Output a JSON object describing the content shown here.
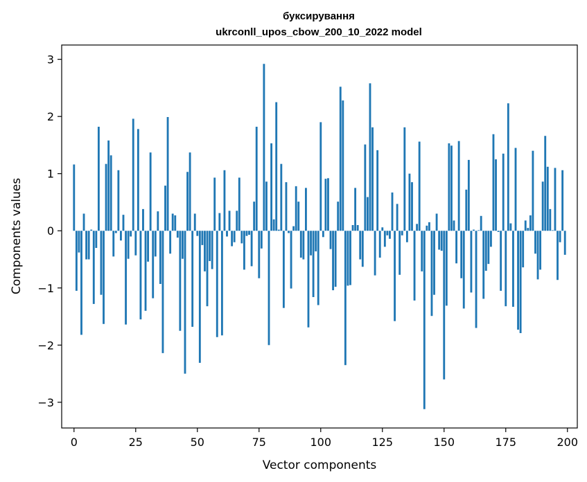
{
  "chart_data": {
    "type": "bar",
    "title": [
      "буксирування",
      "ukrconll_upos_cbow_200_10_2022 model"
    ],
    "xlabel": "Vector components",
    "ylabel": "Components values",
    "xlim": [
      -5,
      204
    ],
    "ylim": [
      -3.45,
      3.25
    ],
    "xticks": [
      0,
      25,
      50,
      75,
      100,
      125,
      150,
      175,
      200
    ],
    "xtick_labels": [
      "0",
      "25",
      "50",
      "75",
      "100",
      "125",
      "150",
      "175",
      "200"
    ],
    "yticks": [
      -3,
      -2,
      -1,
      0,
      1,
      2,
      3
    ],
    "ytick_labels": [
      "−3",
      "−2",
      "−1",
      "0",
      "1",
      "2",
      "3"
    ],
    "grid": false,
    "bar_color": "#1f77b4",
    "x": [
      0,
      1,
      2,
      3,
      4,
      5,
      6,
      7,
      8,
      9,
      10,
      11,
      12,
      13,
      14,
      15,
      16,
      17,
      18,
      19,
      20,
      21,
      22,
      23,
      24,
      25,
      26,
      27,
      28,
      29,
      30,
      31,
      32,
      33,
      34,
      35,
      36,
      37,
      38,
      39,
      40,
      41,
      42,
      43,
      44,
      45,
      46,
      47,
      48,
      49,
      50,
      51,
      52,
      53,
      54,
      55,
      56,
      57,
      58,
      59,
      60,
      61,
      62,
      63,
      64,
      65,
      66,
      67,
      68,
      69,
      70,
      71,
      72,
      73,
      74,
      75,
      76,
      77,
      78,
      79,
      80,
      81,
      82,
      83,
      84,
      85,
      86,
      87,
      88,
      89,
      90,
      91,
      92,
      93,
      94,
      95,
      96,
      97,
      98,
      99,
      100,
      101,
      102,
      103,
      104,
      105,
      106,
      107,
      108,
      109,
      110,
      111,
      112,
      113,
      114,
      115,
      116,
      117,
      118,
      119,
      120,
      121,
      122,
      123,
      124,
      125,
      126,
      127,
      128,
      129,
      130,
      131,
      132,
      133,
      134,
      135,
      136,
      137,
      138,
      139,
      140,
      141,
      142,
      143,
      144,
      145,
      146,
      147,
      148,
      149,
      150,
      151,
      152,
      153,
      154,
      155,
      156,
      157,
      158,
      159,
      160,
      161,
      162,
      163,
      164,
      165,
      166,
      167,
      168,
      169,
      170,
      171,
      172,
      173,
      174,
      175,
      176,
      177,
      178,
      179,
      180,
      181,
      182,
      183,
      184,
      185,
      186,
      187,
      188,
      189,
      190,
      191,
      192,
      193,
      194,
      195,
      196,
      197,
      198,
      199
    ],
    "values": [
      1.16,
      -1.05,
      -0.38,
      -1.82,
      0.3,
      -0.5,
      -0.5,
      0.02,
      -1.28,
      -0.3,
      1.82,
      -1.12,
      -1.63,
      1.17,
      1.58,
      1.32,
      -0.45,
      -0.04,
      1.06,
      -0.17,
      0.28,
      -1.64,
      -0.49,
      -0.1,
      1.96,
      -0.43,
      1.78,
      -1.55,
      0.38,
      -1.4,
      -0.54,
      1.37,
      -1.18,
      -0.45,
      0.34,
      -0.93,
      -2.14,
      0.79,
      1.99,
      -0.4,
      0.3,
      0.27,
      -0.12,
      -1.75,
      -0.49,
      -2.5,
      1.03,
      1.37,
      -1.68,
      0.3,
      -0.09,
      -2.31,
      -0.25,
      -0.71,
      -1.32,
      -0.53,
      -0.67,
      0.93,
      -1.86,
      0.31,
      -1.83,
      1.06,
      -0.1,
      0.35,
      -0.27,
      -0.2,
      0.35,
      0.93,
      -0.22,
      -0.68,
      -0.09,
      -0.07,
      -0.62,
      0.51,
      1.82,
      -0.83,
      -0.31,
      2.92,
      0.86,
      -2.0,
      1.53,
      0.2,
      2.25,
      0.02,
      1.17,
      -1.35,
      0.85,
      -0.04,
      -1.01,
      0.08,
      0.78,
      0.51,
      -0.47,
      -0.5,
      0.75,
      -1.69,
      -0.43,
      -1.16,
      -0.36,
      -1.3,
      1.9,
      -0.11,
      0.91,
      0.92,
      -0.32,
      -1.04,
      -0.98,
      0.51,
      2.52,
      2.28,
      -2.35,
      -0.96,
      -0.95,
      0.1,
      0.75,
      0.1,
      -0.5,
      -0.63,
      1.51,
      0.59,
      2.58,
      1.81,
      -0.78,
      1.41,
      -0.47,
      0.06,
      -0.28,
      -0.08,
      -0.14,
      0.67,
      -1.58,
      0.47,
      -0.77,
      -0.08,
      1.81,
      -0.2,
      1.0,
      0.85,
      -1.22,
      0.12,
      1.56,
      -0.71,
      -3.12,
      0.09,
      0.15,
      -1.49,
      -1.12,
      0.3,
      -0.33,
      -0.35,
      -2.6,
      -1.31,
      1.53,
      1.49,
      0.18,
      -0.57,
      1.57,
      -0.83,
      -1.36,
      0.72,
      1.24,
      -1.08,
      0.02,
      -1.7,
      0.01,
      0.26,
      -1.19,
      -0.7,
      -0.58,
      -0.28,
      1.69,
      1.25,
      -0.02,
      -1.05,
      1.35,
      -1.32,
      2.23,
      0.13,
      -1.33,
      1.45,
      -1.73,
      -1.79,
      -0.64,
      0.18,
      0.05,
      0.27,
      1.4,
      -0.4,
      -0.85,
      -0.68,
      0.86,
      1.66,
      1.12,
      0.38,
      0.01,
      1.1,
      -0.86,
      -0.2,
      1.06,
      -0.42
    ]
  }
}
